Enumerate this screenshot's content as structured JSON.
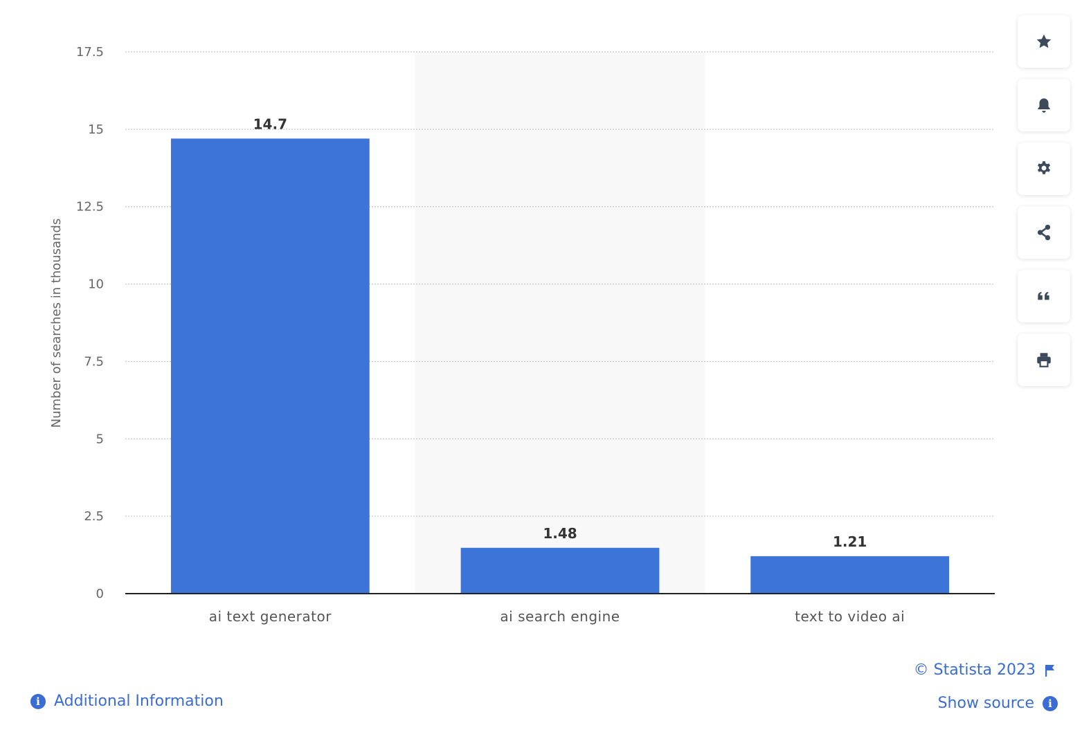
{
  "chart_data": {
    "type": "bar",
    "categories": [
      "ai text generator",
      "ai search engine",
      "text to video ai"
    ],
    "values": [
      14.7,
      1.48,
      1.21
    ],
    "data_labels": [
      "14.7",
      "1.48",
      "1.21"
    ],
    "ylabel": "Number of searches in thousands",
    "xlabel": "",
    "ylim": [
      0,
      17.5
    ],
    "yticks": [
      "0",
      "2.5",
      "5",
      "7.5",
      "10",
      "12.5",
      "15",
      "17.5"
    ],
    "ytick_values": [
      0,
      2.5,
      5,
      7.5,
      10,
      12.5,
      15,
      17.5
    ],
    "grid": true,
    "bar_color": "#3d74d8",
    "highlight_band_color": "#f8f8f8"
  },
  "toolbar": {
    "buttons": [
      {
        "icon": "star-icon",
        "name": "favorite-button"
      },
      {
        "icon": "bell-icon",
        "name": "notification-button"
      },
      {
        "icon": "gear-icon",
        "name": "settings-button"
      },
      {
        "icon": "share-icon",
        "name": "share-button"
      },
      {
        "icon": "quote-icon",
        "name": "cite-button"
      },
      {
        "icon": "printer-icon",
        "name": "print-button"
      }
    ]
  },
  "footer": {
    "credit": "© Statista 2023",
    "show_source": "Show source",
    "additional_info": "Additional Information"
  },
  "colors": {
    "accent": "#3b6cd4",
    "icon": "#3d4a5c"
  }
}
